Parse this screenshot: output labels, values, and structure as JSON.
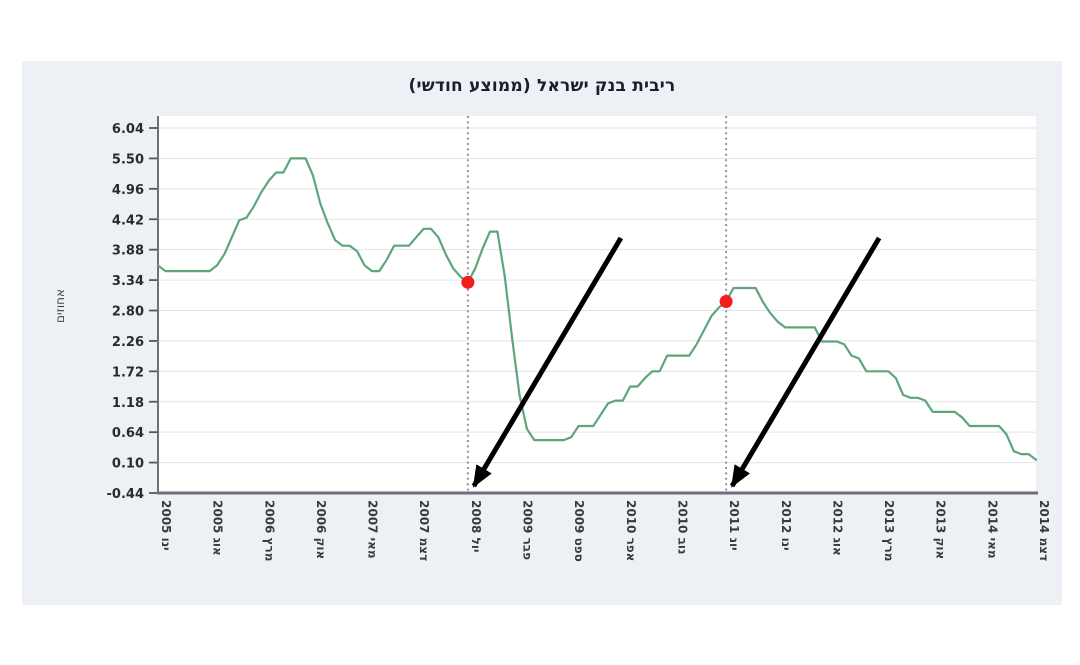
{
  "page": {
    "background": "#ffffff",
    "panel_background": "#edf0f5"
  },
  "chart_data": {
    "type": "line",
    "title": "ריבית בנק ישראל (ממוצע חודשי)",
    "xlabel": "",
    "ylabel": "אחוזים",
    "ylim": [
      -0.44,
      6.04
    ],
    "grid": "horizontal",
    "legend": "none",
    "y_ticks": [
      6.04,
      5.5,
      4.96,
      4.42,
      3.88,
      3.34,
      2.8,
      2.26,
      1.72,
      1.18,
      0.64,
      0.1,
      -0.44
    ],
    "y_tick_labels": [
      "6.04",
      "5.50",
      "4.96",
      "4.42",
      "3.88",
      "3.34",
      "2.80",
      "2.26",
      "1.72",
      "1.18",
      "0.64",
      "0.10",
      "-0.44"
    ],
    "x_tick_months": [
      0,
      7,
      14,
      21,
      28,
      35,
      42,
      49,
      56,
      63,
      70,
      77,
      84,
      91,
      98,
      105,
      112,
      119
    ],
    "x_tick_labels": [
      "ינו 2005",
      "אוג 2005",
      "מרץ 2006",
      "אוק 2006",
      "מאי 2007",
      "דצמ 2007",
      "יול 2008",
      "פבר 2009",
      "ספט 2009",
      "אפר 2010",
      "נוב 2010",
      "יונ 2011",
      "ינו 2012",
      "אוג 2012",
      "מרץ 2013",
      "אוק 2013",
      "מאי 2014",
      "דצמ 2014"
    ],
    "series": [
      {
        "name": "ריבית בנק ישראל (ממוצע חודשי)",
        "color": "#5da57a",
        "start_month_label": "ינו 2005",
        "end_month_label": "דצמ 2014",
        "values": [
          3.6,
          3.5,
          3.5,
          3.5,
          3.5,
          3.5,
          3.5,
          3.5,
          3.6,
          3.8,
          4.1,
          4.4,
          4.45,
          4.65,
          4.9,
          5.1,
          5.25,
          5.25,
          5.5,
          5.5,
          5.5,
          5.2,
          4.7,
          4.35,
          4.05,
          3.95,
          3.95,
          3.85,
          3.6,
          3.5,
          3.5,
          3.7,
          3.95,
          3.95,
          3.95,
          4.1,
          4.25,
          4.25,
          4.1,
          3.8,
          3.55,
          3.4,
          3.3,
          3.55,
          3.9,
          4.2,
          4.2,
          3.4,
          2.3,
          1.3,
          0.7,
          0.5,
          0.5,
          0.5,
          0.5,
          0.5,
          0.55,
          0.75,
          0.75,
          0.75,
          0.95,
          1.15,
          1.2,
          1.2,
          1.45,
          1.45,
          1.6,
          1.72,
          1.72,
          2.0,
          2.0,
          2.0,
          2.0,
          2.2,
          2.45,
          2.7,
          2.85,
          2.96,
          3.2,
          3.2,
          3.2,
          3.2,
          2.95,
          2.75,
          2.6,
          2.5,
          2.5,
          2.5,
          2.5,
          2.5,
          2.25,
          2.25,
          2.25,
          2.2,
          2.0,
          1.95,
          1.72,
          1.72,
          1.72,
          1.72,
          1.6,
          1.3,
          1.25,
          1.25,
          1.2,
          1.0,
          1.0,
          1.0,
          1.0,
          0.9,
          0.75,
          0.75,
          0.75,
          0.75,
          0.75,
          0.6,
          0.3,
          0.25,
          0.25,
          0.15
        ]
      }
    ],
    "annotations": {
      "dashed_marker_month_indices": [
        42,
        77
      ],
      "dashed_marker_labels": [
        "יול 2008",
        "יונ 2011"
      ],
      "dots": [
        {
          "month_index": 42,
          "value": 3.3,
          "color": "#f21d1d"
        },
        {
          "month_index": 77,
          "value": 2.96,
          "color": "#f21d1d"
        }
      ],
      "arrows_point_to_month_indices": [
        42,
        77
      ],
      "arrow_color": "#000000"
    },
    "colors": {
      "line": "#5da57a",
      "dot": "#f21d1d",
      "grid": "#e0e4e9",
      "axis": "#6d7177",
      "dashed_marker": "#8f9296",
      "plot_background": "#ffffff"
    }
  }
}
